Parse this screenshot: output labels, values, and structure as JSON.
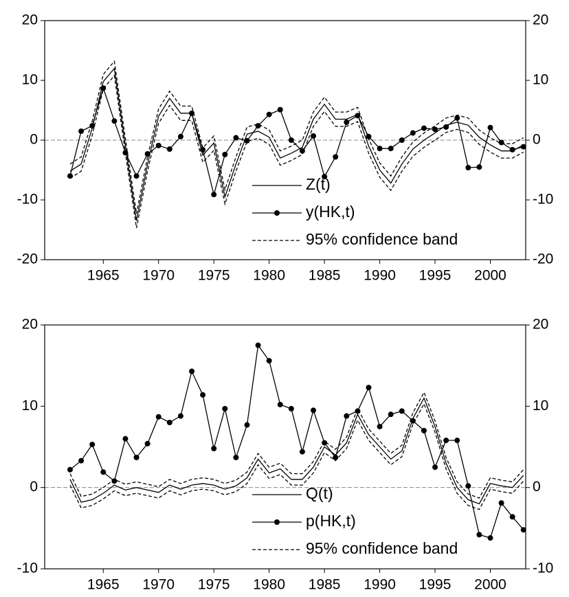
{
  "chart_data": [
    {
      "type": "line",
      "x": [
        1962,
        1963,
        1964,
        1965,
        1966,
        1967,
        1968,
        1969,
        1970,
        1971,
        1972,
        1973,
        1974,
        1975,
        1976,
        1977,
        1978,
        1979,
        1980,
        1981,
        1982,
        1983,
        1984,
        1985,
        1986,
        1987,
        1988,
        1989,
        1990,
        1991,
        1992,
        1993,
        1994,
        1995,
        1996,
        1997,
        1998,
        1999,
        2000,
        2001,
        2002,
        2003
      ],
      "xlim": [
        1959.7,
        2003.2
      ],
      "xticks": [
        1965,
        1970,
        1975,
        1980,
        1985,
        1990,
        1995,
        2000
      ],
      "ylim": [
        -20,
        20
      ],
      "yticks": [
        -20,
        -10,
        0,
        10,
        20
      ],
      "y2lim": [
        -20,
        20
      ],
      "y2ticks": [
        -20,
        -10,
        0,
        10,
        20
      ],
      "zero_line": true,
      "legend": "lower center",
      "series": [
        {
          "name": "Z(t)",
          "color": "#000000",
          "style": "solid",
          "values": [
            -5.2,
            -4,
            2,
            9.8,
            12,
            -1,
            -13.5,
            -4,
            4,
            7,
            4.5,
            4.5,
            -2.5,
            -0.5,
            -9.5,
            -4,
            1,
            1.5,
            0.5,
            -3,
            -2.2,
            -1.2,
            3.5,
            6,
            3.5,
            3.5,
            4.3,
            -1,
            -5,
            -7.2,
            -4,
            -1.5,
            0,
            1.2,
            2.5,
            3,
            2.5,
            0.5,
            -0.8,
            -1.8,
            -1.8,
            -0.8
          ]
        },
        {
          "name": "y(HK,t)",
          "color": "#000000",
          "style": "solid",
          "marker": true,
          "values": [
            -6,
            1.5,
            2.4,
            8.7,
            3.2,
            -2.1,
            -6,
            -2.3,
            -0.9,
            -1.5,
            0.6,
            4.5,
            -1.6,
            -9.1,
            -2.4,
            0.4,
            -0.1,
            2.4,
            4.3,
            5.1,
            0,
            -1.8,
            0.7,
            -6.1,
            -2.8,
            3,
            4.1,
            0.6,
            -1.4,
            -1.4,
            0,
            1.2,
            2,
            1.8,
            2.2,
            3.7,
            -4.6,
            -4.5,
            2.1,
            -0.4,
            -1.6,
            -1.1
          ]
        },
        {
          "name": "95% confidence band",
          "color": "#000000",
          "style": "dashed",
          "upper": [
            -4,
            -2.8,
            3.2,
            11,
            13.2,
            0.2,
            -12.3,
            -2.8,
            5.2,
            8.2,
            5.7,
            5.7,
            -1.3,
            0.7,
            -8.3,
            -2.8,
            2.2,
            2.7,
            1.7,
            -1.8,
            -1,
            0,
            4.7,
            7.2,
            4.7,
            4.7,
            5.5,
            0.2,
            -3.8,
            -6,
            -2.8,
            -0.3,
            1.2,
            2.4,
            3.7,
            4.2,
            3.7,
            1.7,
            0.4,
            -0.6,
            -0.6,
            0.4
          ],
          "lower": [
            -6.4,
            -5.2,
            0.8,
            8.6,
            10.8,
            -2.2,
            -14.7,
            -5.2,
            2.8,
            5.8,
            3.3,
            3.3,
            -3.7,
            -1.7,
            -10.7,
            -5.2,
            -0.2,
            0.3,
            -0.7,
            -4.2,
            -3.4,
            -2.4,
            2.3,
            4.8,
            2.3,
            2.3,
            3.1,
            -2.2,
            -6.2,
            -8.4,
            -5.2,
            -2.7,
            -1.2,
            0,
            1.3,
            1.8,
            1.3,
            -0.7,
            -2,
            -3,
            -3,
            -2
          ]
        }
      ]
    },
    {
      "type": "line",
      "x": [
        1962,
        1963,
        1964,
        1965,
        1966,
        1967,
        1968,
        1969,
        1970,
        1971,
        1972,
        1973,
        1974,
        1975,
        1976,
        1977,
        1978,
        1979,
        1980,
        1981,
        1982,
        1983,
        1984,
        1985,
        1986,
        1987,
        1988,
        1989,
        1990,
        1991,
        1992,
        1993,
        1994,
        1995,
        1996,
        1997,
        1998,
        1999,
        2000,
        2001,
        2002,
        2003
      ],
      "xlim": [
        1959.7,
        2003.2
      ],
      "xticks": [
        1965,
        1970,
        1975,
        1980,
        1985,
        1990,
        1995,
        2000
      ],
      "ylim": [
        -10,
        20
      ],
      "yticks": [
        -10,
        0,
        10,
        20
      ],
      "y2lim": [
        -10,
        20
      ],
      "y2ticks": [
        -10,
        0,
        10,
        20
      ],
      "zero_line": true,
      "legend": "lower center",
      "series": [
        {
          "name": "Q(t)",
          "color": "#000000",
          "style": "solid",
          "values": [
            1,
            -1.8,
            -1.5,
            -0.7,
            0.3,
            -0.3,
            0,
            -0.3,
            -0.6,
            0.3,
            -0.2,
            0.3,
            0.5,
            0.3,
            -0.2,
            0.2,
            1.2,
            3.5,
            1.8,
            2.3,
            1,
            1,
            2.5,
            5,
            4,
            5.5,
            9,
            6.5,
            5,
            3.5,
            4.5,
            8.5,
            11,
            7.5,
            3,
            0,
            -1.5,
            -2,
            0.5,
            0.2,
            0,
            1.5
          ]
        },
        {
          "name": "p(HK,t)",
          "color": "#000000",
          "style": "solid",
          "marker": true,
          "values": [
            2.2,
            3.3,
            5.3,
            1.9,
            0.8,
            6,
            3.7,
            5.4,
            8.7,
            8,
            8.8,
            14.3,
            11.4,
            4.8,
            9.7,
            3.7,
            7.7,
            17.5,
            15.6,
            10.2,
            9.7,
            4.4,
            9.5,
            5.5,
            3.7,
            8.8,
            9.4,
            12.3,
            7.5,
            9,
            9.4,
            8.2,
            7,
            2.5,
            5.8,
            5.8,
            0.2,
            -5.8,
            -6.2,
            -1.9,
            -3.6,
            -5.2
          ]
        },
        {
          "name": "95% confidence band",
          "color": "#000000",
          "style": "dashed",
          "upper": [
            1.7,
            -1.1,
            -0.8,
            0,
            1,
            0.4,
            0.7,
            0.4,
            0.1,
            1,
            0.5,
            1,
            1.2,
            1,
            0.5,
            0.9,
            1.9,
            4.2,
            2.5,
            3,
            1.7,
            1.7,
            3.2,
            5.7,
            4.7,
            6.2,
            9.7,
            7.2,
            5.7,
            4.2,
            5.2,
            9.2,
            11.7,
            8.2,
            3.7,
            0.7,
            -0.8,
            -1.3,
            1.2,
            0.9,
            0.7,
            2.2
          ],
          "lower": [
            0.3,
            -2.5,
            -2.2,
            -1.4,
            -0.4,
            -1,
            -0.7,
            -1,
            -1.3,
            -0.4,
            -0.9,
            -0.4,
            -0.2,
            -0.4,
            -0.9,
            -0.5,
            0.5,
            2.8,
            1.1,
            1.6,
            0.3,
            0.3,
            1.8,
            4.3,
            3.3,
            4.8,
            8.3,
            5.8,
            4.3,
            2.8,
            3.8,
            7.8,
            10.3,
            6.8,
            2.3,
            -0.7,
            -2.2,
            -2.7,
            -0.2,
            -0.5,
            -0.7,
            0.8
          ]
        }
      ]
    }
  ]
}
